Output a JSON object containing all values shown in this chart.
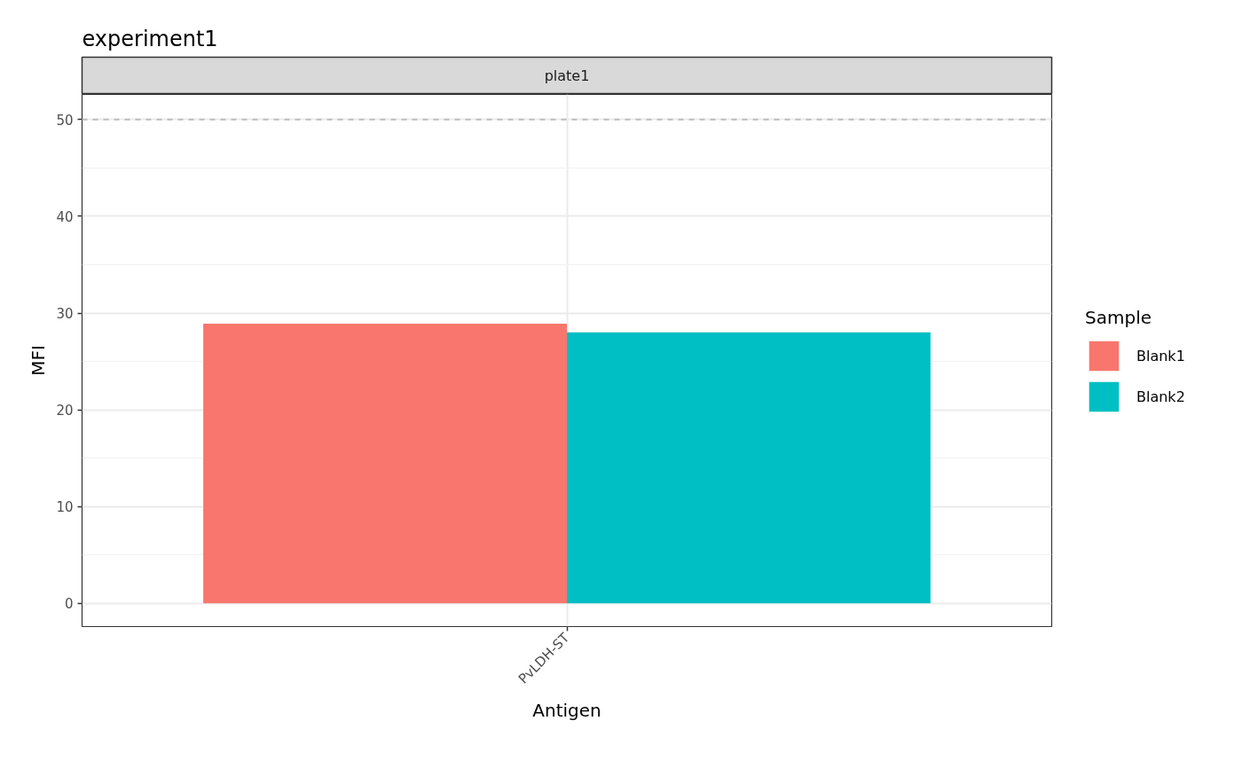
{
  "chart_data": {
    "type": "bar",
    "title": "experiment1",
    "subtitle": "plate1",
    "xlabel": "Antigen",
    "ylabel": "MFI",
    "legend_title": "Sample",
    "categories": [
      "PvLDH-ST"
    ],
    "series": [
      {
        "name": "Blank1",
        "color": "#f8766d",
        "values": [
          28.9
        ]
      },
      {
        "name": "Blank2",
        "color": "#00bfc4",
        "values": [
          28.0
        ]
      }
    ],
    "ylim": [
      -2.4,
      52.6
    ],
    "yticks": [
      0,
      10,
      20,
      30,
      40,
      50
    ],
    "grid": true,
    "legend": "right",
    "ref_lines": [
      {
        "axis": "y",
        "value": 50,
        "color": "#bebebe",
        "line_style": "dashed"
      }
    ]
  }
}
